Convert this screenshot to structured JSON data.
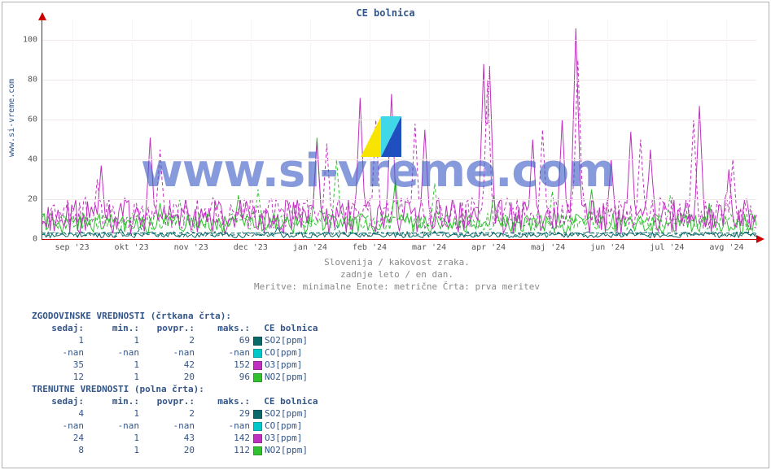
{
  "title": "CE bolnica",
  "source_label": "www.si-vreme.com",
  "watermark_text": "www.si-vreme.com",
  "captions": {
    "line1": "Slovenija / kakovost zraka.",
    "line2": "zadnje leto / en dan.",
    "line3": "Meritve: minimalne  Enote: metrične  Črta: prva meritev"
  },
  "chart": {
    "type": "line",
    "background_color": "#ffffff",
    "grid_color": "#f3e8e8",
    "axis_color": "#c00",
    "ylim": [
      0,
      110
    ],
    "yticks": [
      0,
      20,
      40,
      60,
      80,
      100
    ],
    "xticks": [
      "sep '23",
      "okt '23",
      "nov '23",
      "dec '23",
      "jan '24",
      "feb '24",
      "mar '24",
      "apr '24",
      "maj '24",
      "jun '24",
      "jul '24",
      "avg '24"
    ],
    "n_points": 365,
    "colors": {
      "SO2": "#0a6a6a",
      "CO": "#00c8c8",
      "O3": "#c030c0",
      "NO2": "#30c030"
    },
    "dash_hist": "4,3",
    "series_current": {
      "SO2": {
        "base": 1.5,
        "amp": 3,
        "spikes": [
          [
            40,
            5
          ],
          [
            120,
            6
          ],
          [
            200,
            4
          ],
          [
            300,
            5
          ]
        ]
      },
      "NO2": {
        "base": 6,
        "amp": 10,
        "spikes": [
          [
            60,
            18
          ],
          [
            100,
            22
          ],
          [
            140,
            51
          ],
          [
            180,
            30
          ],
          [
            230,
            22
          ],
          [
            280,
            25
          ],
          [
            340,
            18
          ]
        ]
      },
      "O3": {
        "base": 8,
        "amp": 18,
        "spikes": [
          [
            30,
            37
          ],
          [
            55,
            51
          ],
          [
            140,
            49
          ],
          [
            162,
            71
          ],
          [
            178,
            73
          ],
          [
            195,
            55
          ],
          [
            225,
            88
          ],
          [
            228,
            87
          ],
          [
            250,
            50
          ],
          [
            265,
            60
          ],
          [
            272,
            106
          ],
          [
            290,
            40
          ],
          [
            300,
            54
          ],
          [
            310,
            45
          ],
          [
            335,
            67
          ],
          [
            350,
            35
          ]
        ]
      }
    },
    "series_hist": {
      "SO2": {
        "base": 2,
        "amp": 2.5,
        "spikes": [
          [
            50,
            6
          ],
          [
            150,
            7
          ],
          [
            260,
            6
          ]
        ]
      },
      "NO2": {
        "base": 7,
        "amp": 9,
        "spikes": [
          [
            70,
            20
          ],
          [
            110,
            25
          ],
          [
            150,
            40
          ],
          [
            200,
            28
          ],
          [
            260,
            24
          ],
          [
            320,
            22
          ]
        ]
      },
      "O3": {
        "base": 10,
        "amp": 16,
        "spikes": [
          [
            28,
            30
          ],
          [
            60,
            45
          ],
          [
            145,
            48
          ],
          [
            170,
            60
          ],
          [
            190,
            58
          ],
          [
            227,
            80
          ],
          [
            255,
            55
          ],
          [
            273,
            90
          ],
          [
            305,
            50
          ],
          [
            332,
            60
          ],
          [
            352,
            40
          ]
        ]
      }
    }
  },
  "legend": {
    "hist_title": "ZGODOVINSKE VREDNOSTI (črtkana črta):",
    "curr_title": "TRENUTNE VREDNOSTI (polna črta):",
    "columns": [
      "sedaj:",
      "min.:",
      "povpr.:",
      "maks.:"
    ],
    "station": "CE bolnica",
    "hist_rows": [
      {
        "sedaj": "1",
        "min": "1",
        "povpr": "2",
        "maks": "69",
        "swatch": "#0a6a6a",
        "label": "SO2[ppm]"
      },
      {
        "sedaj": "-nan",
        "min": "-nan",
        "povpr": "-nan",
        "maks": "-nan",
        "swatch": "#00c8c8",
        "label": "CO[ppm]"
      },
      {
        "sedaj": "35",
        "min": "1",
        "povpr": "42",
        "maks": "152",
        "swatch": "#c030c0",
        "label": "O3[ppm]"
      },
      {
        "sedaj": "12",
        "min": "1",
        "povpr": "20",
        "maks": "96",
        "swatch": "#30c030",
        "label": "NO2[ppm]"
      }
    ],
    "curr_rows": [
      {
        "sedaj": "4",
        "min": "1",
        "povpr": "2",
        "maks": "29",
        "swatch": "#0a6a6a",
        "label": "SO2[ppm]"
      },
      {
        "sedaj": "-nan",
        "min": "-nan",
        "povpr": "-nan",
        "maks": "-nan",
        "swatch": "#00c8c8",
        "label": "CO[ppm]"
      },
      {
        "sedaj": "24",
        "min": "1",
        "povpr": "43",
        "maks": "142",
        "swatch": "#c030c0",
        "label": "O3[ppm]"
      },
      {
        "sedaj": "8",
        "min": "1",
        "povpr": "20",
        "maks": "112",
        "swatch": "#30c030",
        "label": "NO2[ppm]"
      }
    ]
  }
}
